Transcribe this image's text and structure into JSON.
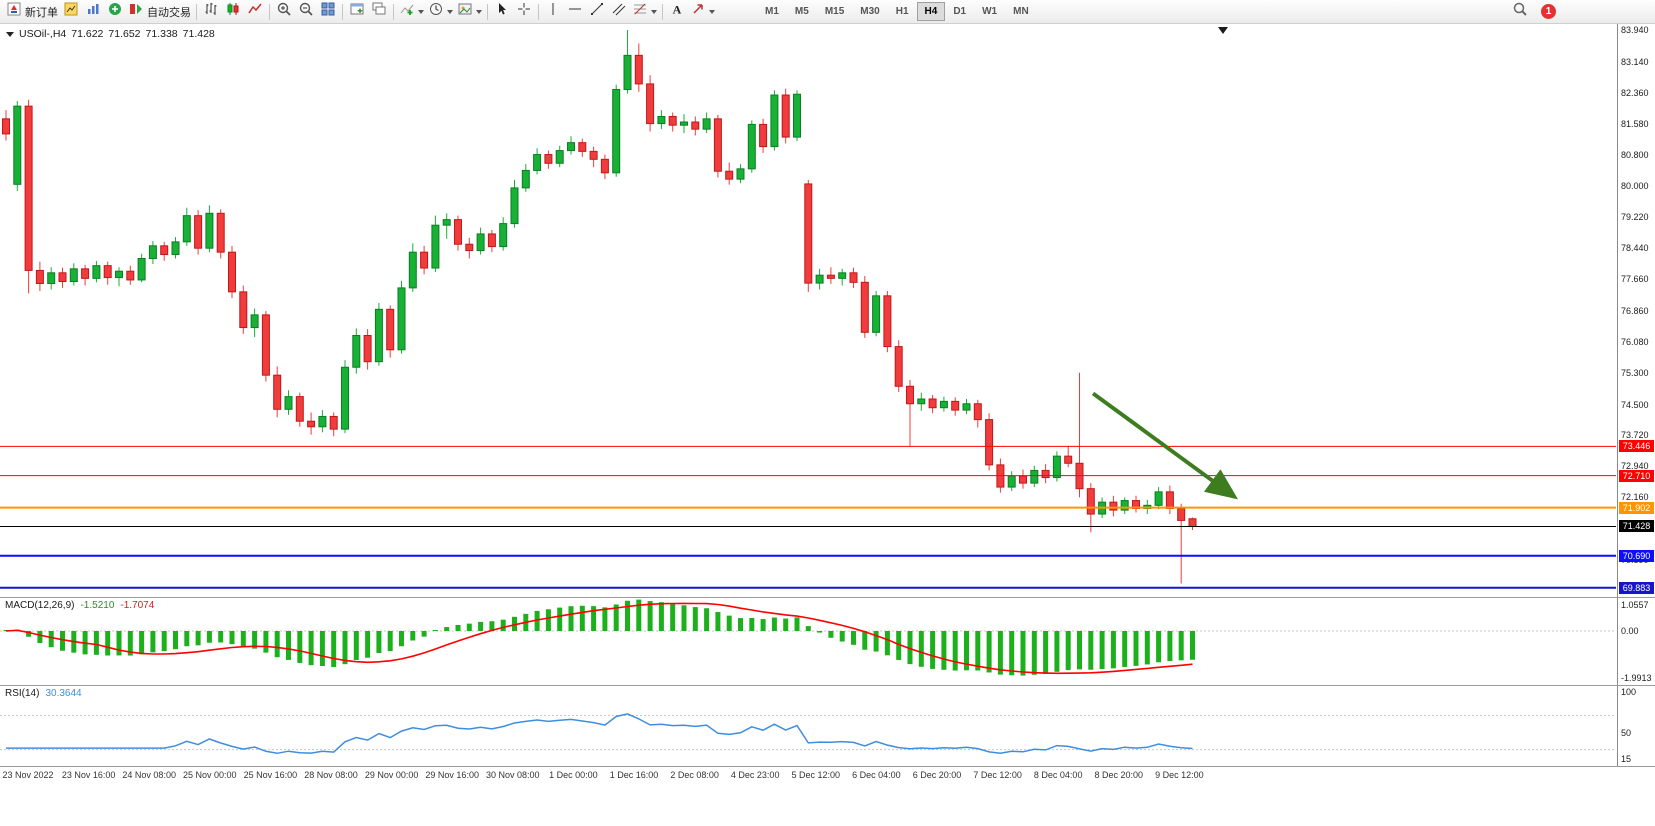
{
  "toolbar": {
    "groups": [
      {
        "items": [
          {
            "icon": "new-order-icon",
            "name": "new-order-button",
            "label": "新订单"
          },
          {
            "icon": "charts-icon",
            "name": "charts-button"
          },
          {
            "icon": "profiles-icon",
            "name": "profiles-button"
          },
          {
            "icon": "market-watch-icon",
            "name": "market-watch-button"
          },
          {
            "icon": "autotrade-icon",
            "name": "autotrade-button",
            "label": "自动交易"
          }
        ]
      },
      {
        "items": [
          {
            "icon": "bar-chart-icon",
            "name": "bar-chart-button"
          },
          {
            "icon": "candlestick-icon",
            "name": "candlestick-button"
          },
          {
            "icon": "line-chart-icon",
            "name": "line-chart-button"
          }
        ]
      },
      {
        "items": [
          {
            "icon": "zoom-in-icon",
            "name": "zoom-in-button"
          },
          {
            "icon": "zoom-out-icon",
            "name": "zoom-out-button"
          },
          {
            "icon": "tile-windows-icon",
            "name": "tile-windows-button"
          }
        ]
      },
      {
        "items": [
          {
            "icon": "new-chart-icon",
            "name": "new-chart-button"
          },
          {
            "icon": "cascade-windows-icon",
            "name": "cascade-windows-button"
          }
        ]
      },
      {
        "items": [
          {
            "icon": "indicators-icon",
            "name": "indicators-button",
            "caret": true
          },
          {
            "icon": "periods-icon",
            "name": "periods-button",
            "caret": true
          },
          {
            "icon": "templates-icon",
            "name": "templates-button",
            "caret": true
          }
        ]
      },
      {
        "items": [
          {
            "icon": "cursor-icon",
            "name": "cursor-button"
          },
          {
            "icon": "crosshair-icon",
            "name": "crosshair-button"
          }
        ]
      },
      {
        "items": [
          {
            "icon": "vertical-line-icon",
            "name": "vertical-line-button"
          },
          {
            "icon": "horizontal-line-icon",
            "name": "horizontal-line-button"
          },
          {
            "icon": "trendline-icon",
            "name": "trendline-button"
          },
          {
            "icon": "equidistant-channel-icon",
            "name": "equidistant-channel-button"
          },
          {
            "icon": "fibonacci-icon",
            "name": "fibonacci-button",
            "caret": true
          }
        ]
      },
      {
        "items": [
          {
            "icon": "text-label-icon",
            "name": "text-label-button"
          },
          {
            "icon": "arrows-icon",
            "name": "arrows-button",
            "caret": true
          }
        ]
      }
    ],
    "timeframes": [
      {
        "label": "M1"
      },
      {
        "label": "M5"
      },
      {
        "label": "M15"
      },
      {
        "label": "M30"
      },
      {
        "label": "H1"
      },
      {
        "label": "H4",
        "active": true
      },
      {
        "label": "D1"
      },
      {
        "label": "W1"
      },
      {
        "label": "MN"
      }
    ],
    "notification_count": "1"
  },
  "chart_header": {
    "symbol_period": "USOil-,H4",
    "open": "71.622",
    "high": "71.652",
    "low": "71.338",
    "close": "71.428"
  },
  "chart_data": {
    "type": "candlestick",
    "symbol": "USOil-",
    "timeframe": "H4",
    "scale": {
      "price_at_top": 84.09,
      "price_at_bottom": 69.65
    },
    "axis_ticks": [
      "83.940",
      "83.140",
      "82.360",
      "81.580",
      "80.800",
      "80.000",
      "79.220",
      "78.440",
      "77.660",
      "76.860",
      "76.080",
      "75.300",
      "74.500",
      "73.720",
      "72.940",
      "72.160",
      "71.380",
      "70.590",
      "69.800"
    ],
    "candles": [
      [
        81.7,
        81.92,
        81.15,
        81.32
      ],
      [
        80.05,
        82.15,
        79.88,
        82.02
      ],
      [
        82.02,
        82.18,
        77.3,
        77.88
      ],
      [
        77.88,
        78.1,
        77.36,
        77.55
      ],
      [
        77.55,
        77.96,
        77.4,
        77.82
      ],
      [
        77.82,
        77.95,
        77.44,
        77.6
      ],
      [
        77.6,
        78.06,
        77.5,
        77.92
      ],
      [
        77.92,
        78.02,
        77.5,
        77.68
      ],
      [
        77.68,
        78.12,
        77.58,
        78.0
      ],
      [
        78.0,
        78.1,
        77.52,
        77.7
      ],
      [
        77.7,
        77.96,
        77.48,
        77.86
      ],
      [
        77.86,
        78.0,
        77.52,
        77.64
      ],
      [
        77.64,
        78.3,
        77.58,
        78.18
      ],
      [
        78.18,
        78.62,
        78.04,
        78.5
      ],
      [
        78.5,
        78.6,
        78.12,
        78.28
      ],
      [
        78.28,
        78.72,
        78.18,
        78.6
      ],
      [
        78.6,
        79.46,
        78.5,
        79.26
      ],
      [
        79.26,
        79.4,
        78.28,
        78.44
      ],
      [
        78.44,
        79.52,
        78.34,
        79.32
      ],
      [
        79.32,
        79.42,
        78.18,
        78.34
      ],
      [
        78.34,
        78.5,
        77.18,
        77.34
      ],
      [
        77.34,
        77.5,
        76.28,
        76.44
      ],
      [
        76.44,
        76.92,
        76.2,
        76.76
      ],
      [
        76.76,
        76.86,
        75.08,
        75.24
      ],
      [
        75.24,
        75.46,
        74.18,
        74.38
      ],
      [
        74.38,
        74.86,
        74.24,
        74.7
      ],
      [
        74.7,
        74.8,
        73.94,
        74.08
      ],
      [
        74.08,
        74.3,
        73.74,
        73.94
      ],
      [
        73.94,
        74.36,
        73.8,
        74.2
      ],
      [
        74.2,
        74.3,
        73.7,
        73.88
      ],
      [
        73.88,
        75.62,
        73.78,
        75.44
      ],
      [
        75.44,
        76.42,
        75.28,
        76.24
      ],
      [
        76.24,
        76.4,
        75.38,
        75.58
      ],
      [
        75.58,
        77.06,
        75.48,
        76.9
      ],
      [
        76.9,
        77.0,
        75.68,
        75.88
      ],
      [
        75.88,
        77.62,
        75.78,
        77.44
      ],
      [
        77.44,
        78.56,
        77.34,
        78.34
      ],
      [
        78.34,
        78.5,
        77.78,
        77.94
      ],
      [
        77.94,
        79.26,
        77.84,
        79.02
      ],
      [
        79.02,
        79.32,
        78.68,
        79.16
      ],
      [
        79.16,
        79.26,
        78.38,
        78.54
      ],
      [
        78.54,
        78.7,
        78.18,
        78.38
      ],
      [
        78.38,
        78.96,
        78.28,
        78.8
      ],
      [
        78.8,
        78.9,
        78.34,
        78.48
      ],
      [
        78.48,
        79.22,
        78.38,
        79.06
      ],
      [
        79.06,
        80.16,
        78.96,
        79.96
      ],
      [
        79.96,
        80.56,
        79.86,
        80.4
      ],
      [
        80.4,
        80.96,
        80.3,
        80.8
      ],
      [
        80.8,
        80.9,
        80.44,
        80.58
      ],
      [
        80.58,
        81.02,
        80.48,
        80.9
      ],
      [
        80.9,
        81.26,
        80.8,
        81.1
      ],
      [
        81.1,
        81.2,
        80.74,
        80.88
      ],
      [
        80.88,
        81.0,
        80.48,
        80.68
      ],
      [
        80.68,
        80.8,
        80.18,
        80.34
      ],
      [
        80.34,
        82.56,
        80.24,
        82.44
      ],
      [
        82.44,
        83.94,
        82.34,
        83.3
      ],
      [
        83.3,
        83.6,
        82.38,
        82.58
      ],
      [
        82.58,
        82.8,
        81.38,
        81.58
      ],
      [
        81.58,
        81.92,
        81.44,
        81.76
      ],
      [
        81.76,
        81.86,
        81.38,
        81.54
      ],
      [
        81.54,
        81.82,
        81.34,
        81.62
      ],
      [
        81.62,
        81.76,
        81.28,
        81.44
      ],
      [
        81.44,
        81.86,
        81.34,
        81.7
      ],
      [
        81.7,
        81.8,
        80.22,
        80.38
      ],
      [
        80.38,
        80.6,
        80.04,
        80.18
      ],
      [
        80.18,
        80.56,
        80.08,
        80.44
      ],
      [
        80.44,
        81.66,
        80.34,
        81.56
      ],
      [
        81.56,
        81.7,
        80.84,
        81.0
      ],
      [
        81.0,
        82.42,
        80.9,
        82.3
      ],
      [
        82.3,
        82.46,
        81.08,
        81.24
      ],
      [
        81.24,
        82.42,
        81.14,
        82.32
      ],
      [
        80.06,
        80.16,
        77.34,
        77.56
      ],
      [
        77.56,
        77.92,
        77.4,
        77.76
      ],
      [
        77.76,
        77.96,
        77.54,
        77.68
      ],
      [
        77.68,
        77.92,
        77.5,
        77.82
      ],
      [
        77.82,
        77.95,
        77.44,
        77.58
      ],
      [
        77.58,
        77.74,
        76.18,
        76.32
      ],
      [
        76.32,
        77.36,
        76.22,
        77.24
      ],
      [
        77.24,
        77.36,
        75.82,
        75.96
      ],
      [
        75.96,
        76.12,
        74.82,
        74.96
      ],
      [
        74.96,
        75.12,
        73.45,
        74.52
      ],
      [
        74.52,
        74.8,
        74.34,
        74.64
      ],
      [
        74.64,
        74.74,
        74.28,
        74.42
      ],
      [
        74.42,
        74.7,
        74.32,
        74.58
      ],
      [
        74.58,
        74.68,
        74.22,
        74.36
      ],
      [
        74.36,
        74.64,
        74.26,
        74.52
      ],
      [
        74.52,
        74.62,
        73.92,
        74.12
      ],
      [
        74.12,
        74.28,
        72.84,
        72.98
      ],
      [
        72.98,
        73.14,
        72.28,
        72.42
      ],
      [
        72.42,
        72.82,
        72.32,
        72.7
      ],
      [
        72.7,
        72.86,
        72.38,
        72.52
      ],
      [
        72.52,
        72.96,
        72.42,
        72.84
      ],
      [
        72.84,
        73.0,
        72.52,
        72.66
      ],
      [
        72.66,
        73.32,
        72.56,
        73.2
      ],
      [
        73.2,
        73.46,
        72.92,
        73.02
      ],
      [
        73.02,
        75.3,
        72.16,
        72.38
      ],
      [
        72.38,
        72.52,
        71.28,
        71.74
      ],
      [
        71.74,
        72.16,
        71.64,
        72.04
      ],
      [
        72.04,
        72.2,
        71.68,
        71.84
      ],
      [
        71.84,
        72.16,
        71.74,
        72.08
      ],
      [
        72.08,
        72.2,
        71.78,
        71.88
      ],
      [
        71.88,
        72.1,
        71.74,
        71.96
      ],
      [
        71.96,
        72.42,
        71.86,
        72.3
      ],
      [
        72.3,
        72.46,
        71.74,
        71.88
      ],
      [
        71.88,
        72.0,
        69.99,
        71.58
      ],
      [
        71.622,
        71.652,
        71.338,
        71.428
      ]
    ],
    "hlines": [
      {
        "price": 73.446,
        "label": "73.446",
        "color": "#ff0000",
        "width": 1
      },
      {
        "price": 72.71,
        "label": "72.710",
        "color": "#ff0000",
        "width": 1
      },
      {
        "price": 71.902,
        "label": "71.902",
        "color": "#ff9500",
        "width": 2
      },
      {
        "price": 70.69,
        "label": "70.690",
        "color": "#0d0dff",
        "width": 2
      },
      {
        "price": 69.883,
        "label": "69.883",
        "color": "#1616c8",
        "width": 2
      }
    ],
    "current_price": {
      "price": 71.428,
      "label": "71.428",
      "color": "#000000"
    },
    "arrow": {
      "t1": 96.2,
      "p1": 74.78,
      "t2": 108.6,
      "p2": 72.2,
      "color": "#3e7d1f"
    },
    "colors": {
      "bull": "#17b135",
      "bear": "#f03c3c",
      "bull_stroke": "#0b7e24",
      "bear_stroke": "#c01818"
    },
    "time_labels": [
      "23 Nov 2022",
      "23 Nov 16:00",
      "24 Nov 08:00",
      "25 Nov 00:00",
      "25 Nov 16:00",
      "28 Nov 08:00",
      "29 Nov 00:00",
      "29 Nov 16:00",
      "30 Nov 08:00",
      "1 Dec 00:00",
      "1 Dec 16:00",
      "2 Dec 08:00",
      "4 Dec 23:00",
      "5 Dec 12:00",
      "6 Dec 04:00",
      "6 Dec 20:00",
      "7 Dec 12:00",
      "8 Dec 04:00",
      "8 Dec 20:00",
      "9 Dec 12:00"
    ],
    "macd": {
      "title": "MACD(12,26,9)",
      "value_main": "-1.5210",
      "value_signal": "-1.7074",
      "axis_ticks": [
        {
          "v": 1.0557,
          "label": "1.0557"
        },
        {
          "v": 0,
          "label": "0.00"
        },
        {
          "v": -1.9913,
          "label": "-1.9913"
        }
      ],
      "histogram_color": "#1cb01c",
      "signal_color": "#ff0000"
    },
    "rsi": {
      "title": "RSI(14)",
      "value": "30.3644",
      "axis_ticks": [
        {
          "v": 100,
          "label": "100"
        },
        {
          "v": 50,
          "label": "50"
        },
        {
          "v": 15,
          "label": "15"
        }
      ],
      "levels": [
        70,
        30
      ],
      "line_color": "#3f8ede"
    }
  }
}
